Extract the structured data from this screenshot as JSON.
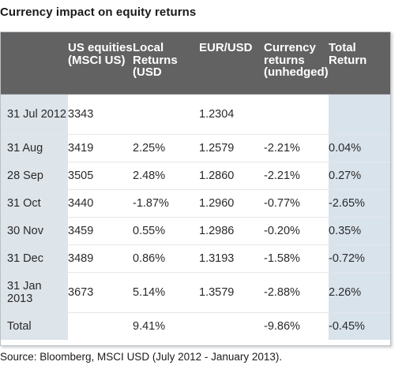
{
  "title": "Currency impact on equity returns",
  "headers": [
    "",
    "US equities (MSCI US)",
    "Local Returns (USD",
    "EUR/USD",
    "Currency returns (unhedged)",
    "Total Return"
  ],
  "rows": [
    [
      "31 Jul 2012",
      "3343",
      "",
      "1.2304",
      "",
      ""
    ],
    [
      "31 Aug",
      "3419",
      "2.25%",
      "1.2579",
      "-2.21%",
      "0.04%"
    ],
    [
      "28 Sep",
      "3505",
      "2.48%",
      "1.2860",
      "-2.21%",
      "0.27%"
    ],
    [
      "31 Oct",
      "3440",
      "-1.87%",
      "1.2960",
      "-0.77%",
      "-2.65%"
    ],
    [
      "30 Nov",
      "3459",
      "0.55%",
      "1.2986",
      "-0.20%",
      "0.35%"
    ],
    [
      "31 Dec",
      "3489",
      "0.86%",
      "1.3193",
      "-1.58%",
      "-0.72%"
    ],
    [
      "31 Jan 2013",
      "3673",
      "5.14%",
      "1.3579",
      "-2.88%",
      "2.26%"
    ],
    [
      "Total",
      "",
      "9.41%",
      "",
      "-9.86%",
      "-0.45%"
    ]
  ],
  "source": "Source: Bloomberg, MSCI USD (July 2012 - January 2013).",
  "colors": {
    "header_bg": "#626262",
    "first_col_bg": "#dde4ea",
    "total_return_col_bg": "#d9e3ec"
  }
}
